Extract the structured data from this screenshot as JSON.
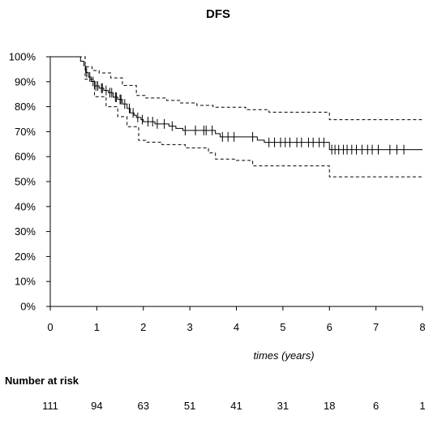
{
  "chart_data": {
    "type": "line",
    "title": "DFS",
    "xlabel": "times (years)",
    "ylabel": "",
    "xlim": [
      0,
      8
    ],
    "ylim": [
      0,
      100
    ],
    "x_ticks": [
      "0",
      "1",
      "2",
      "3",
      "4",
      "5",
      "6",
      "7",
      "8"
    ],
    "y_ticks": [
      "0%",
      "10%",
      "20%",
      "30%",
      "40%",
      "50%",
      "60%",
      "70%",
      "80%",
      "90%",
      "100%"
    ],
    "grid": false,
    "series": [
      {
        "role": "estimate",
        "style": "solid",
        "points": [
          [
            0,
            100
          ],
          [
            0.55,
            100
          ],
          [
            0.65,
            98.2
          ],
          [
            0.72,
            96.4
          ],
          [
            0.76,
            93.7
          ],
          [
            0.82,
            91.9
          ],
          [
            0.88,
            90.1
          ],
          [
            0.95,
            88.3
          ],
          [
            1.05,
            87.4
          ],
          [
            1.15,
            86.5
          ],
          [
            1.25,
            85.6
          ],
          [
            1.35,
            83.8
          ],
          [
            1.45,
            82.9
          ],
          [
            1.55,
            81.1
          ],
          [
            1.65,
            79.3
          ],
          [
            1.72,
            77.5
          ],
          [
            1.8,
            76.6
          ],
          [
            1.85,
            75.7
          ],
          [
            1.95,
            74.8
          ],
          [
            2.0,
            74.0
          ],
          [
            2.25,
            73.1
          ],
          [
            2.55,
            72.2
          ],
          [
            2.7,
            71.3
          ],
          [
            2.85,
            70.5
          ],
          [
            3.3,
            70.5
          ],
          [
            3.55,
            69.2
          ],
          [
            3.65,
            67.9
          ],
          [
            4.0,
            67.9
          ],
          [
            4.45,
            66.6
          ],
          [
            4.6,
            65.7
          ],
          [
            5.95,
            65.7
          ],
          [
            6.0,
            62.8
          ],
          [
            8.0,
            62.8
          ]
        ]
      },
      {
        "role": "upper confidence limit",
        "style": "dashed",
        "points": [
          [
            0,
            100
          ],
          [
            0.6,
            100
          ],
          [
            0.75,
            96
          ],
          [
            0.9,
            94.5
          ],
          [
            1.05,
            93.5
          ],
          [
            1.3,
            91.5
          ],
          [
            1.55,
            88.5
          ],
          [
            1.85,
            84.5
          ],
          [
            2.05,
            83.5
          ],
          [
            2.5,
            82.5
          ],
          [
            2.8,
            81.5
          ],
          [
            3.15,
            80.5
          ],
          [
            3.5,
            79.8
          ],
          [
            4.2,
            78.8
          ],
          [
            4.7,
            77.8
          ],
          [
            5.95,
            77.8
          ],
          [
            6.0,
            74.8
          ],
          [
            8.0,
            74.8
          ]
        ]
      },
      {
        "role": "lower confidence limit",
        "style": "dashed",
        "points": [
          [
            0,
            100
          ],
          [
            0.6,
            100
          ],
          [
            0.75,
            91
          ],
          [
            0.95,
            84
          ],
          [
            1.2,
            80
          ],
          [
            1.45,
            76
          ],
          [
            1.65,
            72
          ],
          [
            1.9,
            66.5
          ],
          [
            2.05,
            65.8
          ],
          [
            2.4,
            64.8
          ],
          [
            2.9,
            63.5
          ],
          [
            3.4,
            61.5
          ],
          [
            3.55,
            59
          ],
          [
            4.0,
            58.5
          ],
          [
            4.35,
            56.3
          ],
          [
            5.95,
            56.3
          ],
          [
            6.0,
            51.9
          ],
          [
            8.0,
            51.9
          ]
        ]
      }
    ],
    "censor_times": [
      0.78,
      0.85,
      0.92,
      0.98,
      1.02,
      1.1,
      1.12,
      1.2,
      1.28,
      1.32,
      1.4,
      1.42,
      1.5,
      1.52,
      1.6,
      1.7,
      1.78,
      1.88,
      1.98,
      2.1,
      2.2,
      2.3,
      2.45,
      2.62,
      2.9,
      3.12,
      3.3,
      3.35,
      3.48,
      3.7,
      3.82,
      3.95,
      4.35,
      4.7,
      4.82,
      4.95,
      5.05,
      5.15,
      5.3,
      5.4,
      5.55,
      5.65,
      5.78,
      5.88,
      6.05,
      6.12,
      6.2,
      6.3,
      6.38,
      6.48,
      6.58,
      6.7,
      6.82,
      6.92,
      7.05,
      7.3,
      7.45,
      7.6
    ],
    "number_at_risk": {
      "label": "Number at risk",
      "values": [
        "111",
        "94",
        "63",
        "51",
        "41",
        "31",
        "18",
        "6",
        "1"
      ]
    }
  }
}
